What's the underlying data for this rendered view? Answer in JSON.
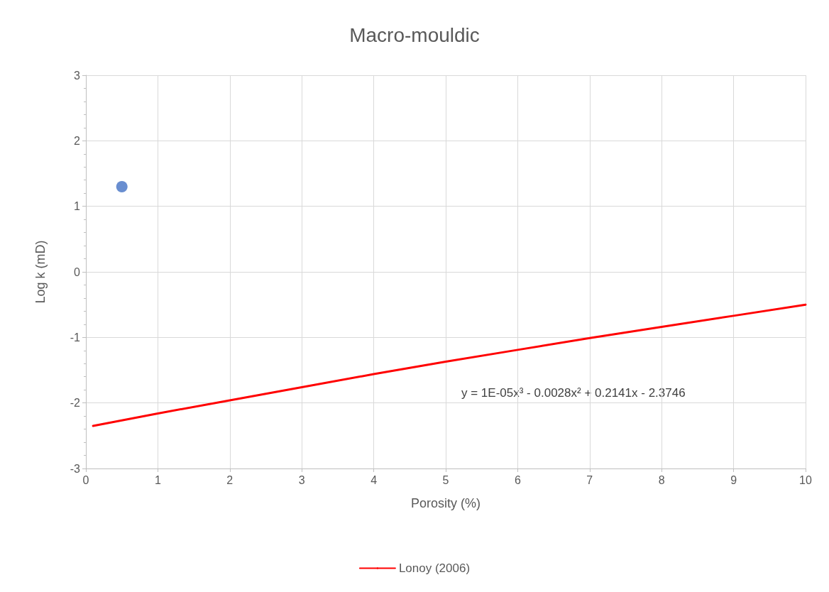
{
  "chart_data": {
    "type": "scatter",
    "title": "Macro-mouldic",
    "xlabel": "Porosity (%)",
    "ylabel": "Log k (mD)",
    "xlim": [
      0,
      10
    ],
    "xticks": [
      0,
      1,
      2,
      3,
      4,
      5,
      6,
      7,
      8,
      9,
      10
    ],
    "ylim": [
      -3,
      3
    ],
    "yticks": [
      -3,
      -2,
      -1,
      0,
      1,
      2,
      3
    ],
    "grid": true,
    "legend": "bottom",
    "annotations": [
      "y = 1E-05x³ - 0.0028x² + 0.2141x - 2.3746"
    ],
    "series": [
      {
        "color": "#4472c4",
        "marker": "circle",
        "x": [
          0.5
        ],
        "values": [
          1.3
        ]
      },
      {
        "type": "line",
        "name": "Lonoy (2006)",
        "color": "#ff0000",
        "marker": "none",
        "line_style": "solid",
        "x": [
          0.1,
          1,
          2,
          3,
          4,
          5,
          6,
          7,
          8,
          9,
          10
        ],
        "values": [
          -2.35,
          -2.16,
          -1.96,
          -1.76,
          -1.56,
          -1.37,
          -1.19,
          -1.01,
          -0.84,
          -0.67,
          -0.5
        ]
      }
    ]
  }
}
